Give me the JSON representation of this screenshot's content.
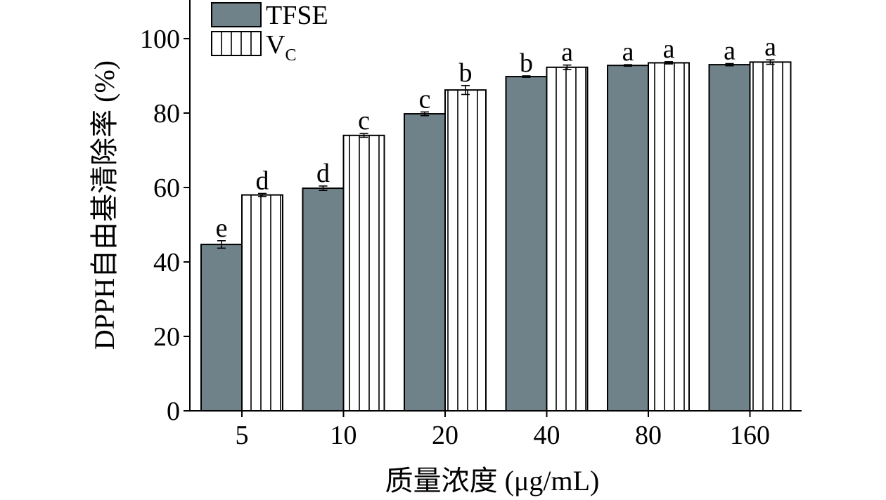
{
  "chart_data": {
    "type": "bar",
    "xlabel": "质量浓度 (μg/mL)",
    "ylabel": "DPPH自由基清除率 (%)",
    "categories": [
      "5",
      "10",
      "20",
      "40",
      "80",
      "160"
    ],
    "ylim": [
      0,
      110
    ],
    "yticks": [
      "0",
      "20",
      "40",
      "60",
      "80",
      "100"
    ],
    "grid": false,
    "legend_position": "top-left",
    "series": [
      {
        "name": "TFSE",
        "values": [
          44.7,
          59.8,
          79.8,
          89.8,
          92.8,
          93.0
        ],
        "errors": [
          1.0,
          0.6,
          0.5,
          0.2,
          0.2,
          0.3
        ],
        "letters": [
          "e",
          "d",
          "c",
          "b",
          "a",
          "a"
        ],
        "fill": "#6f8189",
        "pattern": "solid"
      },
      {
        "name": "VC",
        "name_main": "V",
        "name_sub": "C",
        "values": [
          58.0,
          74.0,
          86.2,
          92.3,
          93.5,
          93.7
        ],
        "errors": [
          0.4,
          0.5,
          1.2,
          0.6,
          0.3,
          0.6
        ],
        "letters": [
          "d",
          "c",
          "b",
          "a",
          "a",
          "a"
        ],
        "fill": "#ffffff",
        "pattern": "vertical-lines"
      }
    ]
  },
  "colors": {
    "tfse_fill": "#6f8189",
    "vc_fill": "#ffffff",
    "axis": "#000000"
  }
}
